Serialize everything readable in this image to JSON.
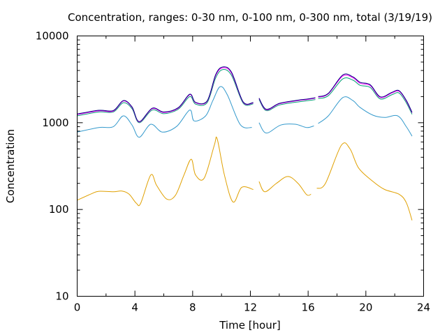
{
  "chart_data": {
    "type": "line",
    "title": "Concentration, ranges: 0-30 nm, 0-100 nm, 0-300 nm, total (3/19/19)",
    "xlabel": "Time [hour]",
    "ylabel": "Concentration",
    "xlim": [
      0,
      24
    ],
    "ylim": [
      10,
      10000
    ],
    "yscale": "log",
    "grid": false,
    "x_ticks": [
      0,
      4,
      8,
      12,
      16,
      20,
      24
    ],
    "x_tick_labels": [
      "0",
      "4",
      "8",
      "12",
      "16",
      "20",
      "24"
    ],
    "y_ticks": [
      10,
      100,
      1000,
      10000
    ],
    "y_tick_labels": [
      "10",
      "100",
      "1000",
      "10000"
    ],
    "series": [
      {
        "color": "#e0a000",
        "segments": [
          [
            [
              0,
              128
            ],
            [
              1,
              152
            ],
            [
              1.5,
              162
            ],
            [
              2.5,
              160
            ],
            [
              3.1,
              163
            ],
            [
              3.6,
              150
            ],
            [
              4.1,
              118
            ],
            [
              4.4,
              118
            ],
            [
              5.1,
              250
            ],
            [
              5.5,
              190
            ],
            [
              6.2,
              132
            ],
            [
              6.8,
              145
            ],
            [
              7.4,
              250
            ],
            [
              7.9,
              380
            ],
            [
              8.2,
              250
            ],
            [
              8.8,
              230
            ],
            [
              9.5,
              550
            ],
            [
              9.7,
              650
            ],
            [
              10.2,
              250
            ],
            [
              10.8,
              122
            ],
            [
              11.4,
              180
            ],
            [
              12.2,
              170
            ]
          ],
          [
            [
              12.6,
              210
            ],
            [
              13,
              160
            ],
            [
              13.8,
              200
            ],
            [
              14.6,
              240
            ],
            [
              15.3,
              200
            ],
            [
              15.9,
              148
            ],
            [
              16.2,
              150
            ]
          ],
          [
            [
              16.6,
              175
            ],
            [
              17.2,
              200
            ],
            [
              18.3,
              550
            ],
            [
              18.9,
              500
            ],
            [
              19.5,
              300
            ],
            [
              20.5,
              210
            ],
            [
              21.3,
              170
            ],
            [
              22.3,
              150
            ],
            [
              22.8,
              120
            ],
            [
              23.2,
              75
            ]
          ]
        ]
      },
      {
        "color": "#3399cc",
        "segments": [
          [
            [
              0,
              780
            ],
            [
              1.5,
              880
            ],
            [
              2.5,
              900
            ],
            [
              3.2,
              1200
            ],
            [
              3.8,
              940
            ],
            [
              4.3,
              680
            ],
            [
              5.1,
              960
            ],
            [
              5.9,
              780
            ],
            [
              6.9,
              910
            ],
            [
              7.8,
              1400
            ],
            [
              8.1,
              1050
            ],
            [
              8.9,
              1200
            ],
            [
              9.4,
              1800
            ],
            [
              9.9,
              2600
            ],
            [
              10.4,
              2100
            ],
            [
              11.3,
              950
            ],
            [
              12.1,
              880
            ]
          ],
          [
            [
              12.6,
              1000
            ],
            [
              13.1,
              760
            ],
            [
              14.1,
              940
            ],
            [
              15.1,
              960
            ],
            [
              15.9,
              880
            ],
            [
              16.4,
              920
            ]
          ],
          [
            [
              16.7,
              980
            ],
            [
              17.4,
              1200
            ],
            [
              18.4,
              1950
            ],
            [
              19.1,
              1800
            ],
            [
              19.6,
              1500
            ],
            [
              20.5,
              1220
            ],
            [
              21.3,
              1150
            ],
            [
              22.2,
              1200
            ],
            [
              22.8,
              900
            ],
            [
              23.2,
              700
            ]
          ]
        ]
      },
      {
        "color": "#009e73",
        "segments": [
          [
            [
              0,
              1200
            ],
            [
              1.5,
              1330
            ],
            [
              2.5,
              1330
            ],
            [
              3.2,
              1700
            ],
            [
              3.8,
              1450
            ],
            [
              4.3,
              1000
            ],
            [
              5.2,
              1400
            ],
            [
              6,
              1270
            ],
            [
              7,
              1430
            ],
            [
              7.8,
              2000
            ],
            [
              8.2,
              1640
            ],
            [
              9,
              1700
            ],
            [
              9.6,
              3300
            ],
            [
              10.1,
              4100
            ],
            [
              10.7,
              3500
            ],
            [
              11.5,
              1680
            ],
            [
              12.2,
              1650
            ]
          ],
          [
            [
              12.6,
              1850
            ],
            [
              13.1,
              1380
            ],
            [
              14,
              1600
            ],
            [
              15.1,
              1720
            ],
            [
              16,
              1800
            ],
            [
              16.5,
              1850
            ]
          ],
          [
            [
              16.7,
              1900
            ],
            [
              17.4,
              2050
            ],
            [
              18.4,
              3200
            ],
            [
              19.1,
              3100
            ],
            [
              19.6,
              2700
            ],
            [
              20.3,
              2550
            ],
            [
              21,
              1880
            ],
            [
              21.8,
              2100
            ],
            [
              22.3,
              2200
            ],
            [
              22.8,
              1700
            ],
            [
              23.2,
              1250
            ]
          ]
        ]
      },
      {
        "color": "#ff00ff",
        "segments": [
          [
            [
              0,
              1240
            ],
            [
              1.5,
              1370
            ],
            [
              2.5,
              1360
            ],
            [
              3.2,
              1780
            ],
            [
              3.8,
              1500
            ],
            [
              4.3,
              1020
            ],
            [
              5.2,
              1450
            ],
            [
              6,
              1310
            ],
            [
              7,
              1470
            ],
            [
              7.8,
              2100
            ],
            [
              8.2,
              1700
            ],
            [
              9,
              1760
            ],
            [
              9.6,
              3500
            ],
            [
              10.1,
              4300
            ],
            [
              10.7,
              3700
            ],
            [
              11.5,
              1720
            ],
            [
              12.2,
              1690
            ]
          ],
          [
            [
              12.6,
              1900
            ],
            [
              13.1,
              1410
            ],
            [
              14,
              1650
            ],
            [
              15.1,
              1780
            ],
            [
              16,
              1860
            ],
            [
              16.5,
              1920
            ]
          ],
          [
            [
              16.7,
              1970
            ],
            [
              17.4,
              2150
            ],
            [
              18.4,
              3450
            ],
            [
              19.1,
              3300
            ],
            [
              19.6,
              2850
            ],
            [
              20.3,
              2680
            ],
            [
              21,
              1950
            ],
            [
              21.8,
              2200
            ],
            [
              22.3,
              2300
            ],
            [
              22.8,
              1780
            ],
            [
              23.2,
              1300
            ]
          ]
        ]
      },
      {
        "color": "#000080",
        "segments": [
          [
            [
              0,
              1260
            ],
            [
              1.5,
              1390
            ],
            [
              2.5,
              1380
            ],
            [
              3.2,
              1800
            ],
            [
              3.8,
              1520
            ],
            [
              4.3,
              1030
            ],
            [
              5.2,
              1470
            ],
            [
              6,
              1330
            ],
            [
              7,
              1490
            ],
            [
              7.8,
              2130
            ],
            [
              8.2,
              1720
            ],
            [
              9,
              1780
            ],
            [
              9.6,
              3600
            ],
            [
              10.1,
              4400
            ],
            [
              10.7,
              3800
            ],
            [
              11.5,
              1740
            ],
            [
              12.2,
              1710
            ]
          ],
          [
            [
              12.6,
              1920
            ],
            [
              13.1,
              1430
            ],
            [
              14,
              1670
            ],
            [
              15.1,
              1800
            ],
            [
              16,
              1880
            ],
            [
              16.5,
              1940
            ]
          ],
          [
            [
              16.7,
              2000
            ],
            [
              17.4,
              2180
            ],
            [
              18.4,
              3550
            ],
            [
              19.1,
              3380
            ],
            [
              19.6,
              2920
            ],
            [
              20.3,
              2740
            ],
            [
              21,
              1990
            ],
            [
              21.8,
              2240
            ],
            [
              22.3,
              2340
            ],
            [
              22.8,
              1810
            ],
            [
              23.2,
              1320
            ]
          ]
        ]
      }
    ]
  }
}
